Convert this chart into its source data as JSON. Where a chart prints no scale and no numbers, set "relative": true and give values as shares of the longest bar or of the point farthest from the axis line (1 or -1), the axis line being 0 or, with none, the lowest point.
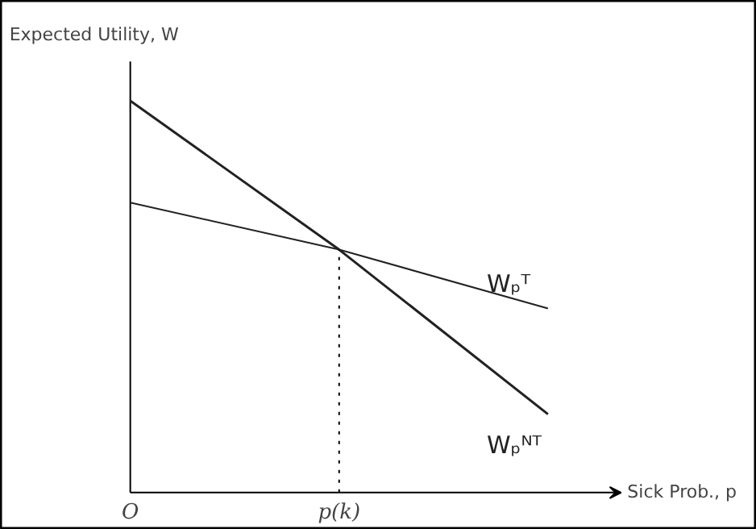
{
  "chart_data": {
    "type": "line",
    "relative": true,
    "xlabel": "Sick Prob., p",
    "ylabel": "Expected Utility, W",
    "categories": [
      "O",
      "p(k)",
      null
    ],
    "series": [
      {
        "name": "Wₚᵀ",
        "color": "#222222",
        "values": [
          0.74,
          0.62,
          0.47
        ]
      },
      {
        "name": "Wₚᴺᵀ",
        "color": "#222222",
        "values": [
          1,
          0.62,
          0.2
        ]
      }
    ],
    "ref_lines": [
      {
        "axis": "x",
        "value": "p(k)",
        "line_style": "dotted"
      }
    ],
    "legend": false,
    "grid": false,
    "marker": "none",
    "line_style": "solid"
  }
}
